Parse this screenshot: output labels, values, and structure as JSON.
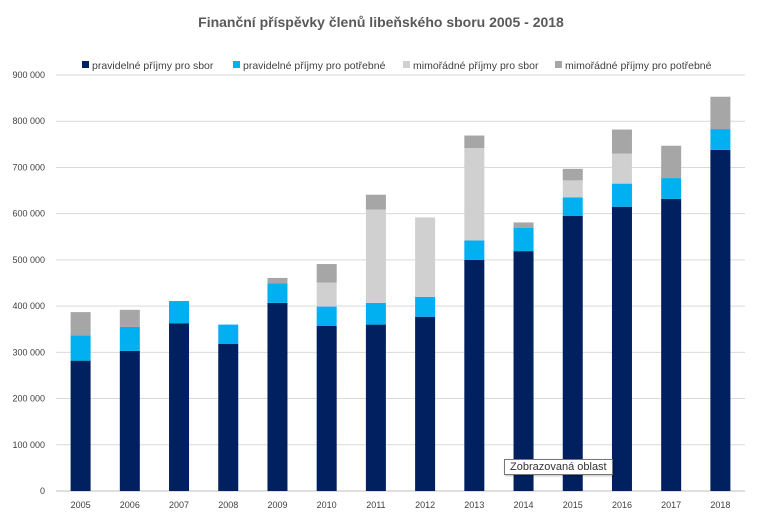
{
  "chart_data": {
    "type": "bar",
    "stacked": true,
    "title": "Finanční příspěvky členů libeňského sboru 2005 - 2018",
    "xlabel": "",
    "ylabel": "",
    "ylim": [
      0,
      900000
    ],
    "yticks": [
      0,
      100000,
      200000,
      300000,
      400000,
      500000,
      600000,
      700000,
      800000,
      900000
    ],
    "ytick_labels": [
      "0",
      "100 000",
      "200 000",
      "300 000",
      "400 000",
      "500 000",
      "600 000",
      "700 000",
      "800 000",
      "900 000"
    ],
    "grid": true,
    "legend_position": "top",
    "categories": [
      "2005",
      "2006",
      "2007",
      "2008",
      "2009",
      "2010",
      "2011",
      "2012",
      "2013",
      "2014",
      "2015",
      "2016",
      "2017",
      "2018"
    ],
    "series": [
      {
        "name": "pravidelné příjmy pro sbor",
        "color": "#002060",
        "values": [
          282000,
          303000,
          363000,
          318000,
          407000,
          357000,
          360000,
          377000,
          500000,
          519000,
          595000,
          615000,
          632000,
          738000
        ]
      },
      {
        "name": "pravidelné příjmy pro potřebné",
        "color": "#00B0F0",
        "values": [
          55000,
          52000,
          48000,
          42000,
          42000,
          42000,
          47000,
          43000,
          42000,
          50000,
          40000,
          50000,
          45000,
          45000
        ]
      },
      {
        "name": "mimořádné příjmy pro sbor",
        "color": "#D0D0D0",
        "values": [
          0,
          0,
          0,
          0,
          0,
          52000,
          202000,
          172000,
          200000,
          0,
          37000,
          65000,
          0,
          0
        ]
      },
      {
        "name": "mimořádné příjmy pro potřebné",
        "color": "#A6A6A6",
        "values": [
          50000,
          37000,
          0,
          0,
          12000,
          40000,
          32000,
          0,
          27000,
          12000,
          25000,
          52000,
          70000,
          70000
        ]
      }
    ]
  },
  "tooltip": {
    "text": "Zobrazovaná oblast"
  }
}
